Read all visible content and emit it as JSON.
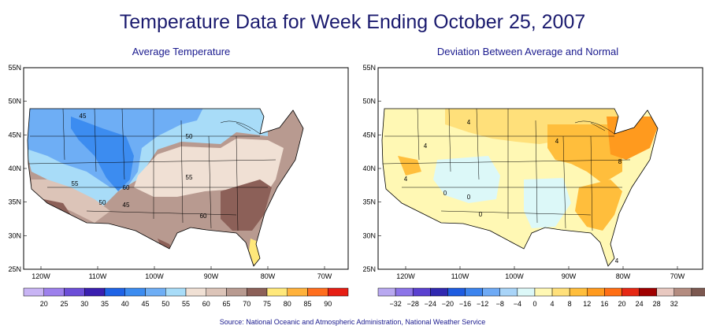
{
  "title": "Temperature Data for Week Ending October 25, 2007",
  "panels": [
    {
      "subtitle": "Average Temperature",
      "lat_labels": [
        "55N",
        "50N",
        "45N",
        "40N",
        "35N",
        "30N",
        "25N"
      ],
      "lon_labels": [
        "120W",
        "110W",
        "100W",
        "90W",
        "80W",
        "70W"
      ],
      "contour_labels": [
        "45",
        "50",
        "55",
        "60",
        "55",
        "45",
        "50",
        "60"
      ],
      "legend_values": [
        "20",
        "25",
        "30",
        "35",
        "40",
        "45",
        "50",
        "55",
        "60",
        "65",
        "70",
        "75",
        "80",
        "85",
        "90"
      ],
      "legend_colors": [
        "#c8b4f4",
        "#9d80ec",
        "#6c4ed8",
        "#3a1fb0",
        "#1f63e6",
        "#3c8cf0",
        "#6eaef5",
        "#a8dcf8",
        "#f0e0d4",
        "#dcc4b8",
        "#b89a90",
        "#8c6058",
        "#ffe87a",
        "#ffb23c",
        "#ff6e1e",
        "#e61e14"
      ]
    },
    {
      "subtitle": "Deviation Between Average and Normal",
      "lat_labels": [
        "55N",
        "50N",
        "45N",
        "40N",
        "35N",
        "30N",
        "25N"
      ],
      "lon_labels": [
        "120W",
        "110W",
        "100W",
        "90W",
        "80W",
        "70W"
      ],
      "contour_labels": [
        "4",
        "4",
        "4",
        "4",
        "0",
        "0",
        "0",
        "8",
        "4"
      ],
      "legend_values": [
        "−32",
        "−28",
        "−24",
        "−20",
        "−16",
        "−12",
        "−8",
        "−4",
        "0",
        "4",
        "8",
        "12",
        "16",
        "20",
        "24",
        "28",
        "32"
      ],
      "legend_colors": [
        "#b8a8f0",
        "#8c74e8",
        "#5a40d0",
        "#3028b0",
        "#1e5ce0",
        "#3c84ee",
        "#6eaaf5",
        "#a8d4f8",
        "#dcf8f8",
        "#fff8b4",
        "#ffe07a",
        "#ffbe3c",
        "#ff9a1e",
        "#ff6e14",
        "#e62814",
        "#a00000",
        "#e8c8c0",
        "#b48c80",
        "#7c5850"
      ]
    }
  ],
  "source": "Source:  National Oceanic and Atmospheric Administration, National Weather Service"
}
